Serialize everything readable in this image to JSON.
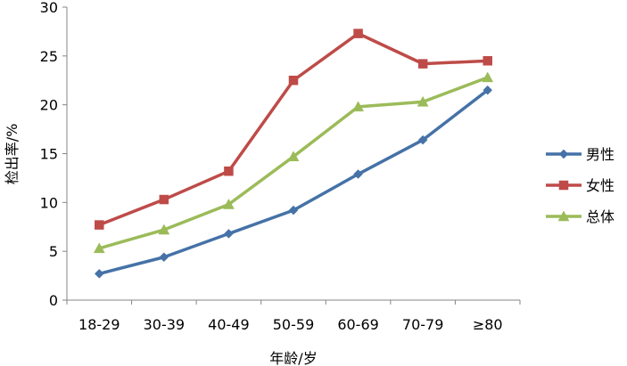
{
  "chart_data": {
    "type": "line",
    "title": "",
    "xlabel": "年龄/岁",
    "ylabel": "检出率/%",
    "categories": [
      "18-29",
      "30-39",
      "40-49",
      "50-59",
      "60-69",
      "70-79",
      "≥80"
    ],
    "ylim": [
      0,
      30
    ],
    "yticks": [
      0,
      5,
      10,
      15,
      20,
      25,
      30
    ],
    "grid": false,
    "legend_position": "right",
    "series": [
      {
        "name": "男性",
        "values": [
          2.7,
          4.4,
          6.8,
          9.2,
          12.9,
          16.4,
          21.5
        ],
        "color": "#4572A7",
        "marker": "diamond"
      },
      {
        "name": "女性",
        "values": [
          7.7,
          10.3,
          13.2,
          22.5,
          27.3,
          24.2,
          24.5
        ],
        "color": "#BE4B48",
        "marker": "square"
      },
      {
        "name": "总体",
        "values": [
          5.3,
          7.2,
          9.8,
          14.7,
          19.8,
          20.3,
          22.8
        ],
        "color": "#9BBB59",
        "marker": "triangle"
      }
    ]
  }
}
